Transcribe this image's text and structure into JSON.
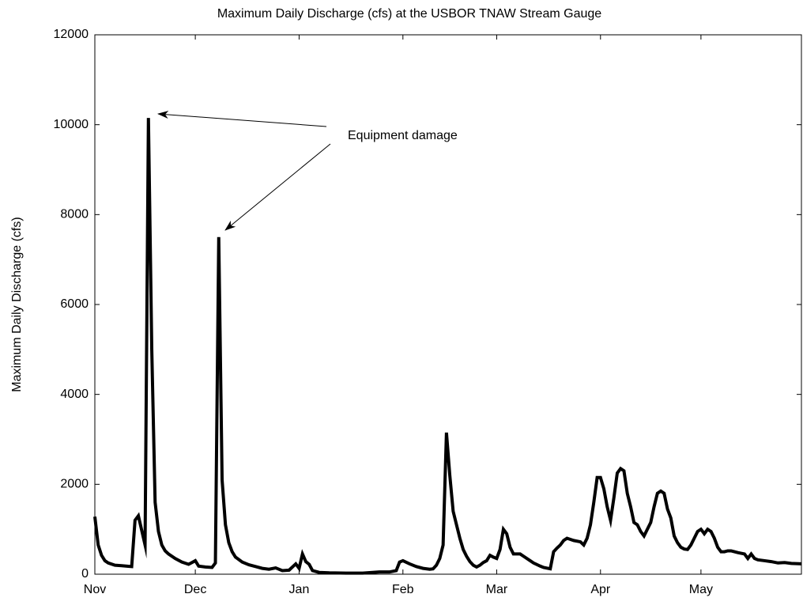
{
  "chart_data": {
    "type": "line",
    "title": "Maximum Daily Discharge (cfs) at the USBOR TNAW Stream Gauge",
    "ylabel": "Maximum Daily Discharge (cfs)",
    "annotation": "Equipment damage",
    "color": "#000000",
    "xlim": [
      0,
      211
    ],
    "xticks": [
      {
        "value": 0,
        "label": "Nov"
      },
      {
        "value": 30,
        "label": "Dec"
      },
      {
        "value": 61,
        "label": "Jan"
      },
      {
        "value": 92,
        "label": "Feb"
      },
      {
        "value": 120,
        "label": "Mar"
      },
      {
        "value": 151,
        "label": "Apr"
      },
      {
        "value": 181,
        "label": "May"
      }
    ],
    "ylim": [
      0,
      12000
    ],
    "yticks": [
      0,
      2000,
      4000,
      6000,
      8000,
      10000,
      12000
    ],
    "x": [
      0,
      1,
      2,
      3,
      4,
      6,
      8,
      10,
      11,
      12,
      13,
      15,
      16,
      17,
      18,
      19,
      20,
      21,
      22,
      24,
      26,
      28,
      29,
      30,
      31,
      33,
      35,
      36,
      37,
      38,
      39,
      40,
      41,
      42,
      44,
      46,
      48,
      50,
      52,
      54,
      56,
      58,
      60,
      61,
      62,
      63,
      64,
      65,
      67,
      70,
      75,
      80,
      85,
      88,
      90,
      91,
      92,
      94,
      96,
      98,
      100,
      101,
      102,
      103,
      104,
      105,
      106,
      107,
      108,
      109,
      110,
      111,
      112,
      113,
      114,
      115,
      116,
      117,
      118,
      119,
      120,
      121,
      122,
      123,
      124,
      125,
      127,
      128,
      130,
      131,
      133,
      134,
      136,
      137,
      138,
      139,
      140,
      141,
      143,
      145,
      146,
      147,
      148,
      149,
      150,
      151,
      152,
      153,
      154,
      155,
      156,
      157,
      158,
      159,
      160,
      161,
      162,
      163,
      164,
      165,
      166,
      167,
      168,
      169,
      170,
      171,
      172,
      173,
      174,
      175,
      176,
      177,
      178,
      179,
      180,
      181,
      182,
      183,
      184,
      185,
      186,
      187,
      188,
      189,
      190,
      191,
      192,
      194,
      195,
      196,
      197,
      198,
      200,
      202,
      204,
      206,
      208,
      211
    ],
    "values": [
      1280,
      650,
      420,
      300,
      250,
      200,
      190,
      175,
      170,
      1200,
      1300,
      650,
      10150,
      5000,
      1600,
      950,
      650,
      520,
      450,
      350,
      270,
      220,
      260,
      300,
      180,
      160,
      150,
      250,
      7500,
      2100,
      1100,
      700,
      500,
      380,
      270,
      210,
      170,
      130,
      110,
      140,
      80,
      90,
      230,
      130,
      450,
      280,
      220,
      80,
      40,
      30,
      25,
      25,
      50,
      50,
      80,
      270,
      300,
      230,
      170,
      130,
      110,
      120,
      200,
      350,
      650,
      3150,
      2200,
      1400,
      1100,
      800,
      550,
      400,
      280,
      200,
      160,
      200,
      260,
      300,
      420,
      380,
      350,
      550,
      1000,
      900,
      600,
      450,
      450,
      400,
      300,
      250,
      180,
      150,
      120,
      500,
      580,
      650,
      750,
      800,
      750,
      720,
      650,
      800,
      1100,
      1600,
      2150,
      2150,
      1900,
      1500,
      1200,
      1700,
      2250,
      2350,
      2300,
      1800,
      1500,
      1150,
      1100,
      950,
      850,
      1000,
      1150,
      1500,
      1800,
      1850,
      1800,
      1450,
      1250,
      850,
      700,
      600,
      560,
      550,
      650,
      800,
      950,
      1000,
      900,
      1000,
      950,
      800,
      600,
      500,
      500,
      520,
      520,
      500,
      480,
      450,
      350,
      450,
      350,
      320,
      300,
      280,
      250,
      260,
      240,
      230
    ]
  }
}
